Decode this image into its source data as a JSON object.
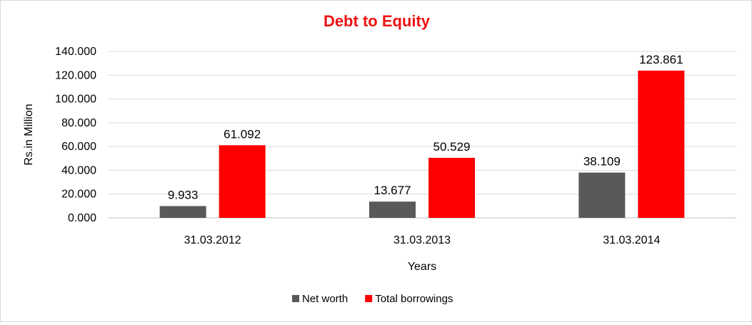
{
  "chart_data": {
    "type": "bar",
    "title": "Debt to Equity",
    "xlabel": "Years",
    "ylabel": "Rs.in Million",
    "categories": [
      "31.03.2012",
      "31.03.2013",
      "31.03.2014"
    ],
    "series": [
      {
        "name": "Net worth",
        "values": [
          9.933,
          13.677,
          38.109
        ],
        "labels": [
          "9.933",
          "13.677",
          "38.109"
        ],
        "color": "#595959"
      },
      {
        "name": "Total borrowings",
        "values": [
          61.092,
          50.529,
          123.861
        ],
        "labels": [
          "61.092",
          "50.529",
          "123.861"
        ],
        "color": "#ff0000"
      }
    ],
    "yticks": [
      0,
      20,
      40,
      60,
      80,
      100,
      120,
      140
    ],
    "ytick_labels": [
      "0.000",
      "20.000",
      "40.000",
      "60.000",
      "80.000",
      "100.000",
      "120.000",
      "140.000"
    ],
    "ylim": [
      0,
      140
    ],
    "grid": true,
    "legend_position": "bottom"
  }
}
